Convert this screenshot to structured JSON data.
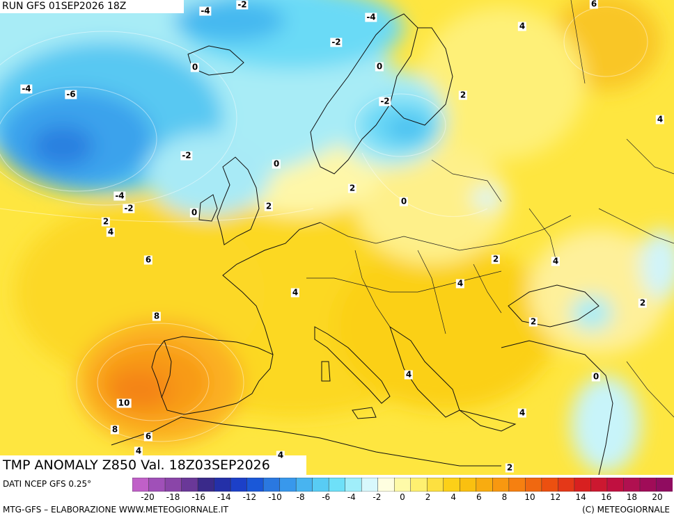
{
  "header": {
    "run_label": "RUN GFS 01SEP2026 18Z"
  },
  "title": {
    "main": "TMP ANOMALY Z850 Val. 18Z03SEP2026"
  },
  "footer": {
    "source": "DATI NCEP GFS 0.25°",
    "credit": "MTG-GFS – ELABORAZIONE WWW.METEOGIORNALE.IT",
    "copyright": "(C) METEOGIORNALE"
  },
  "legend": {
    "tick_labels": [
      "-20",
      "-18",
      "-16",
      "-14",
      "-12",
      "-10",
      "-8",
      "-6",
      "-4",
      "-2",
      "0",
      "2",
      "4",
      "6",
      "8",
      "10",
      "12",
      "14",
      "16",
      "18",
      "20"
    ],
    "colors": [
      "#c060c8",
      "#a050b8",
      "#8a45a8",
      "#6a3898",
      "#3a2a8a",
      "#2430a8",
      "#1c40c8",
      "#1a58d8",
      "#2a78e0",
      "#3898ec",
      "#48b4f0",
      "#58ccf4",
      "#6ee0f8",
      "#a0eefa",
      "#d8f8fc",
      "#fefee0",
      "#fefaa8",
      "#fef070",
      "#fde040",
      "#fcd018",
      "#fac010",
      "#f8ac10",
      "#f89810",
      "#f68010",
      "#f06810",
      "#ec5010",
      "#e43818",
      "#d82020",
      "#cc1830",
      "#c01040",
      "#b01050",
      "#a00c58",
      "#900c60"
    ]
  },
  "map_labels": [
    {
      "text": "-4"
    },
    {
      "text": "-2"
    },
    {
      "text": "-4"
    },
    {
      "text": "6"
    },
    {
      "text": "4"
    },
    {
      "text": "-2"
    },
    {
      "text": "0"
    },
    {
      "text": "0"
    },
    {
      "text": "-4"
    },
    {
      "text": "-6"
    },
    {
      "text": "2"
    },
    {
      "text": "-2"
    },
    {
      "text": "4"
    },
    {
      "text": "-2"
    },
    {
      "text": "0"
    },
    {
      "text": "2"
    },
    {
      "text": "0"
    },
    {
      "text": "-4"
    },
    {
      "text": "-2"
    },
    {
      "text": "2"
    },
    {
      "text": "0"
    },
    {
      "text": "2"
    },
    {
      "text": "4"
    },
    {
      "text": "6"
    },
    {
      "text": "2"
    },
    {
      "text": "4"
    },
    {
      "text": "4"
    },
    {
      "text": "4"
    },
    {
      "text": "2"
    },
    {
      "text": "8"
    },
    {
      "text": "2"
    },
    {
      "text": "4"
    },
    {
      "text": "0"
    },
    {
      "text": "10"
    },
    {
      "text": "4"
    },
    {
      "text": "8"
    },
    {
      "text": "6"
    },
    {
      "text": "4"
    },
    {
      "text": "4"
    },
    {
      "text": "2"
    }
  ]
}
